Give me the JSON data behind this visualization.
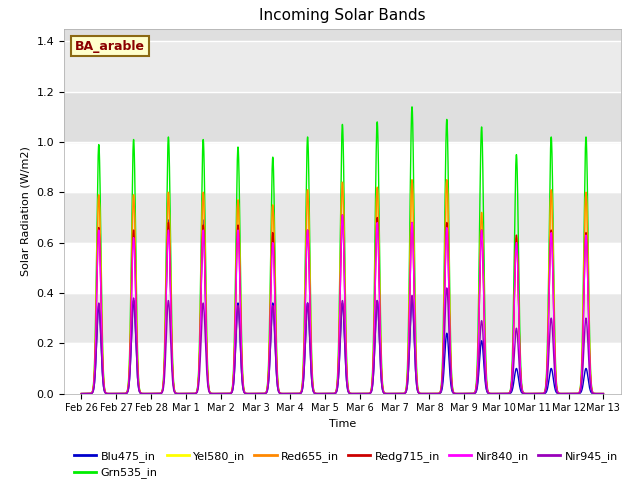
{
  "title": "Incoming Solar Bands",
  "xlabel": "Time",
  "ylabel": "Solar Radiation (W/m2)",
  "annotation": "BA_arable",
  "ylim": [
    0,
    1.45
  ],
  "n_days": 15,
  "series_order": [
    "Blu475_in",
    "Grn535_in",
    "Yel580_in",
    "Red655_in",
    "Redg715_in",
    "Nir840_in",
    "Nir945_in"
  ],
  "series": {
    "Blu475_in": {
      "color": "#0000cc",
      "lw": 1.0
    },
    "Grn535_in": {
      "color": "#00ee00",
      "lw": 1.0
    },
    "Yel580_in": {
      "color": "#ffff00",
      "lw": 1.0
    },
    "Red655_in": {
      "color": "#ff8800",
      "lw": 1.0
    },
    "Redg715_in": {
      "color": "#cc0000",
      "lw": 1.0
    },
    "Nir840_in": {
      "color": "#ff00ff",
      "lw": 1.0
    },
    "Nir945_in": {
      "color": "#9900bb",
      "lw": 1.0
    }
  },
  "xtick_labels": [
    "Feb 26",
    "Feb 27",
    "Feb 28",
    "Mar 1",
    "Mar 2",
    "Mar 3",
    "Mar 4",
    "Mar 5",
    "Mar 6",
    "Mar 7",
    "Mar 8",
    "Mar 9",
    "Mar 10",
    "Mar 11",
    "Mar 12",
    "Mar 13"
  ],
  "peak_heights": {
    "Blu475_in": [
      0.35,
      0.37,
      0.69,
      0.69,
      0.36,
      0.36,
      0.36,
      0.36,
      0.37,
      0.38,
      0.24,
      0.21,
      0.1,
      0.1,
      0.1
    ],
    "Grn535_in": [
      0.99,
      1.01,
      1.02,
      1.01,
      0.98,
      0.94,
      1.02,
      1.07,
      1.08,
      1.14,
      1.09,
      1.06,
      0.95,
      1.02,
      1.02
    ],
    "Yel580_in": [
      0.79,
      0.79,
      0.8,
      0.8,
      0.77,
      0.75,
      0.81,
      0.84,
      0.82,
      0.85,
      0.85,
      0.72,
      0.62,
      0.81,
      0.8
    ],
    "Red655_in": [
      0.79,
      0.79,
      0.8,
      0.8,
      0.77,
      0.75,
      0.81,
      0.84,
      0.82,
      0.85,
      0.85,
      0.72,
      0.62,
      0.81,
      0.8
    ],
    "Redg715_in": [
      0.66,
      0.65,
      0.68,
      0.67,
      0.67,
      0.64,
      0.65,
      0.71,
      0.7,
      0.68,
      0.68,
      0.65,
      0.63,
      0.65,
      0.64
    ],
    "Nir840_in": [
      0.65,
      0.62,
      0.65,
      0.65,
      0.65,
      0.6,
      0.65,
      0.71,
      0.68,
      0.68,
      0.66,
      0.65,
      0.6,
      0.64,
      0.63
    ],
    "Nir945_in": [
      0.36,
      0.38,
      0.37,
      0.36,
      0.35,
      0.35,
      0.36,
      0.37,
      0.37,
      0.39,
      0.42,
      0.29,
      0.26,
      0.3,
      0.3
    ]
  },
  "yticks": [
    0.0,
    0.2,
    0.4,
    0.6,
    0.8,
    1.0,
    1.2,
    1.4
  ],
  "shaded_region": [
    1.0,
    1.45
  ],
  "plot_facecolor": "#e8e8e8",
  "legend_order": [
    "Blu475_in",
    "Grn535_in",
    "Yel580_in",
    "Red655_in",
    "Redg715_in",
    "Nir840_in",
    "Nir945_in"
  ]
}
